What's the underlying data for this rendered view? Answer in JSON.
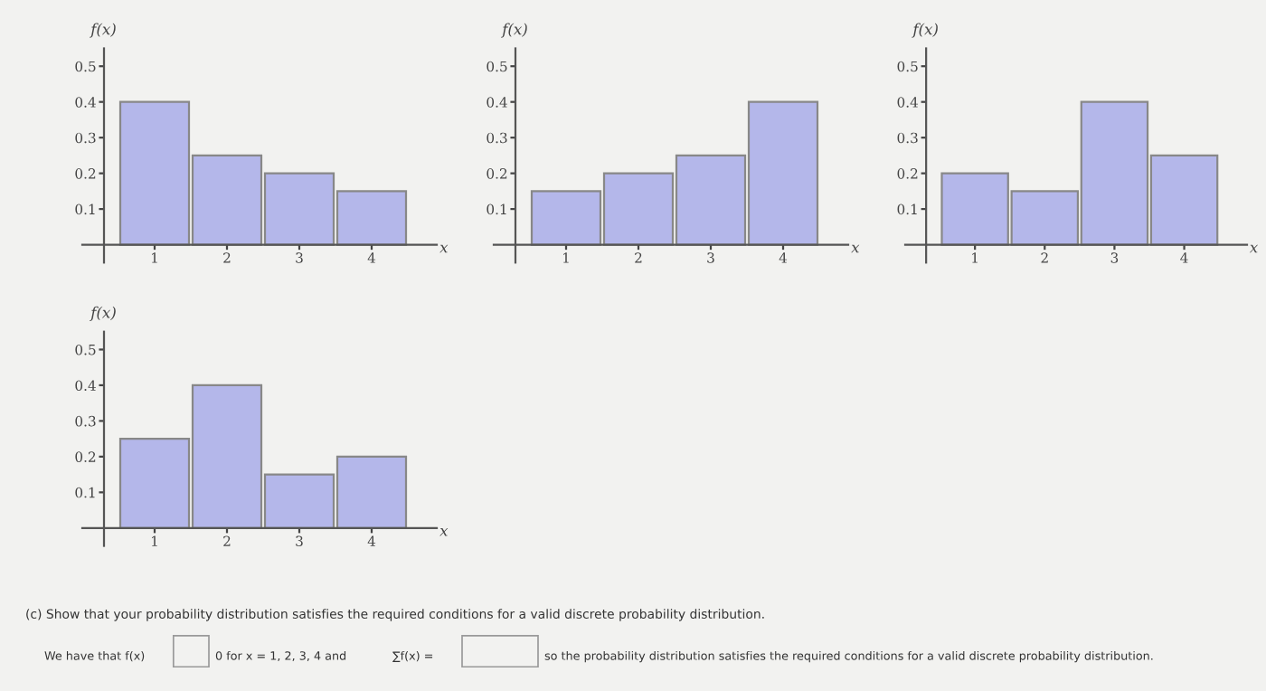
{
  "chart_data": [
    {
      "type": "bar",
      "xlabel": "x",
      "ylabel": "f(x)",
      "x": [
        1,
        2,
        3,
        4
      ],
      "values": [
        0.4,
        0.25,
        0.2,
        0.15
      ],
      "color": "#b4b7ea",
      "xlim": [
        0,
        4.9
      ],
      "ylim": [
        -0.05,
        0.55
      ],
      "xticks": [
        1,
        2,
        3,
        4
      ],
      "yticks": [
        0.1,
        0.2,
        0.3,
        0.4,
        0.5
      ],
      "grid": false,
      "legend": false
    },
    {
      "type": "bar",
      "xlabel": "x",
      "ylabel": "f(x)",
      "x": [
        1,
        2,
        3,
        4
      ],
      "values": [
        0.15,
        0.2,
        0.25,
        0.4
      ],
      "color": "#b4b7ea",
      "xlim": [
        0,
        4.9
      ],
      "ylim": [
        -0.05,
        0.55
      ],
      "xticks": [
        1,
        2,
        3,
        4
      ],
      "yticks": [
        0.1,
        0.2,
        0.3,
        0.4,
        0.5
      ],
      "grid": false,
      "legend": false
    },
    {
      "type": "bar",
      "xlabel": "x",
      "ylabel": "f(x)",
      "x": [
        1,
        2,
        3,
        4
      ],
      "values": [
        0.2,
        0.15,
        0.4,
        0.25
      ],
      "color": "#b4b7ea",
      "xlim": [
        0,
        4.9
      ],
      "ylim": [
        -0.05,
        0.55
      ],
      "xticks": [
        1,
        2,
        3,
        4
      ],
      "yticks": [
        0.1,
        0.2,
        0.3,
        0.4,
        0.5
      ],
      "grid": false,
      "legend": false
    },
    {
      "type": "bar",
      "xlabel": "x",
      "ylabel": "f(x)",
      "x": [
        1,
        2,
        3,
        4
      ],
      "values": [
        0.25,
        0.4,
        0.15,
        0.2
      ],
      "color": "#b4b7ea",
      "xlim": [
        0,
        4.9
      ],
      "ylim": [
        -0.05,
        0.55
      ],
      "xticks": [
        1,
        2,
        3,
        4
      ],
      "yticks": [
        0.1,
        0.2,
        0.3,
        0.4,
        0.5
      ],
      "grid": false,
      "legend": false,
      "annotations": [
        "(c) Show that your probability distribution satisfies the required conditions for a valid discrete probability distribution.",
        "We have that f(x)",
        "0 for x = 1, 2, 3, 4 and",
        "∑f(x) =",
        "so the probability distribution satisfies the required conditions for a valid discrete probability distribution."
      ]
    }
  ]
}
